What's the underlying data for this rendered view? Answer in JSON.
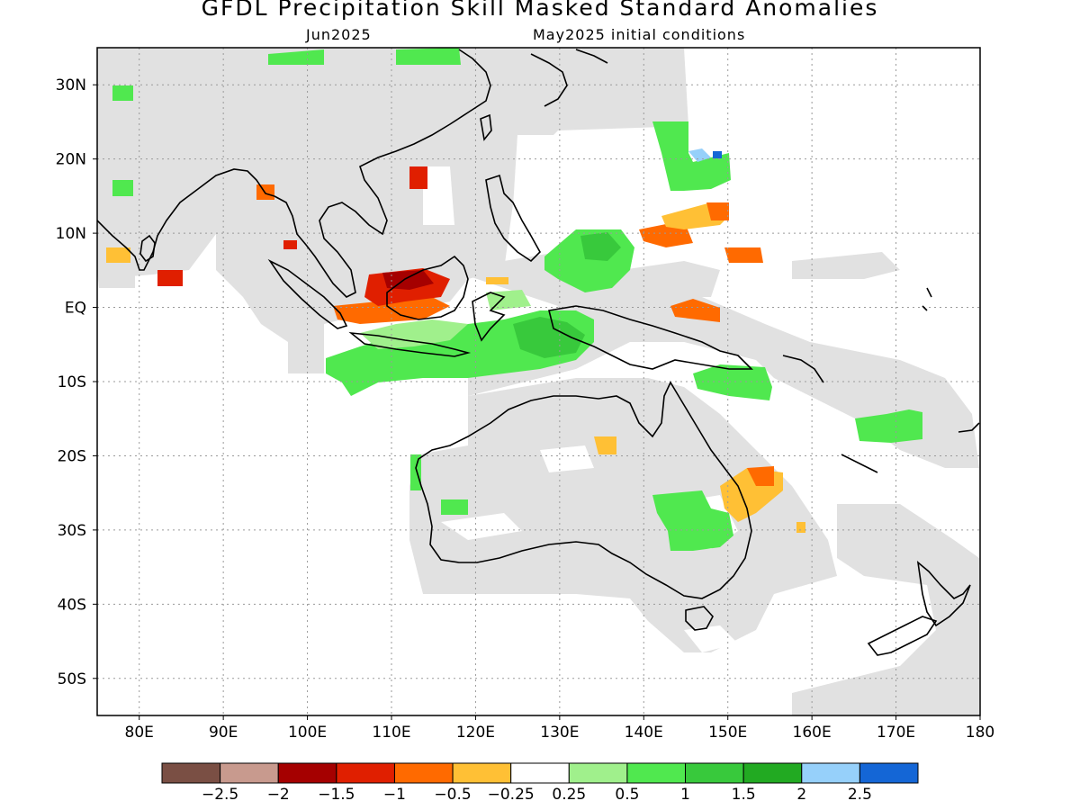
{
  "header": {
    "title": "GFDL Precipitation Skill Masked Standard Anomalies",
    "subtitle_left": "Jun2025",
    "subtitle_right": "May2025 initial conditions"
  },
  "map": {
    "lon_range": [
      75,
      180
    ],
    "lat_range": [
      -55,
      35
    ],
    "x_ticks": [
      "80E",
      "90E",
      "100E",
      "110E",
      "120E",
      "130E",
      "140E",
      "150E",
      "160E",
      "170E",
      "180"
    ],
    "x_tick_values": [
      80,
      90,
      100,
      110,
      120,
      130,
      140,
      150,
      160,
      170,
      180
    ],
    "y_ticks": [
      "30N",
      "20N",
      "10N",
      "EQ",
      "10S",
      "20S",
      "30S",
      "40S",
      "50S"
    ],
    "y_tick_values": [
      30,
      20,
      10,
      0,
      -10,
      -20,
      -30,
      -40,
      -50
    ],
    "grid": true
  },
  "colorbar": {
    "colors": [
      "#7a4f44",
      "#c89a8e",
      "#a50000",
      "#e01f00",
      "#ff6a00",
      "#ffc035",
      "#ffffff",
      "#a0f08c",
      "#50e84f",
      "#38c93c",
      "#22aa22",
      "#96d0fa",
      "#1466d6"
    ],
    "labels": [
      "−2.5",
      "−2",
      "−1.5",
      "−1",
      "−0.5",
      "−0.25",
      "0.25",
      "0.5",
      "1",
      "1.5",
      "2",
      "2.5"
    ]
  },
  "colors": {
    "mask_gray": "#e1e1e1",
    "coastline": "#000000"
  }
}
